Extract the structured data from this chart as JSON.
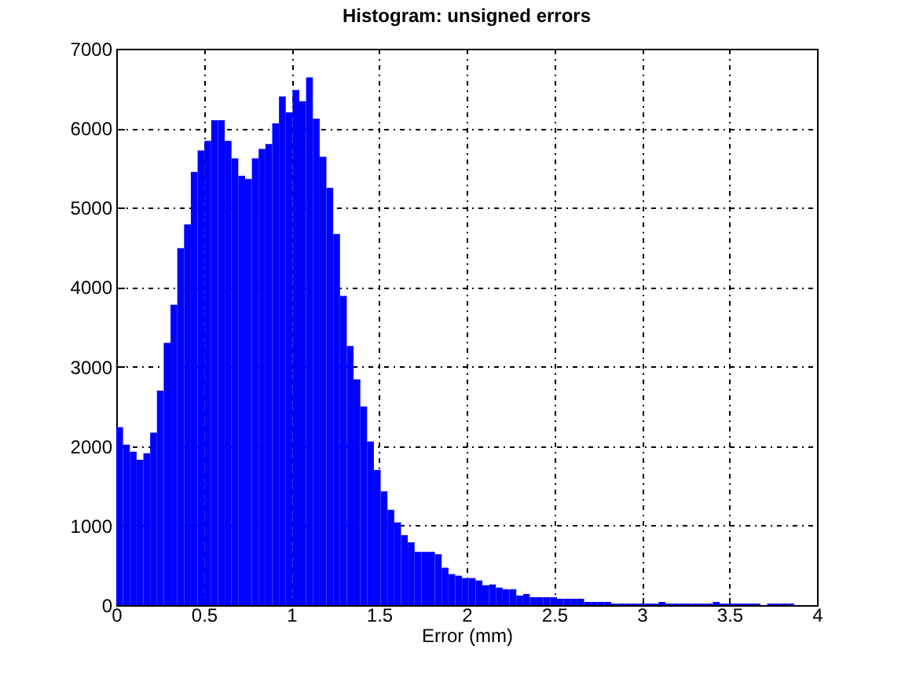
{
  "chart_data": {
    "type": "histogram",
    "title": "Histogram: unsigned errors",
    "xlabel": "Error (mm)",
    "bins": [
      0,
      0.0387,
      0.0774,
      0.1161,
      0.1548,
      0.1935,
      0.2322,
      0.2709,
      0.3096,
      0.3483,
      0.387,
      0.4257,
      0.4644,
      0.5031,
      0.5418,
      0.5805,
      0.6192,
      0.6579,
      0.6966,
      0.7353,
      0.774,
      0.8127,
      0.8514,
      0.8901,
      0.9288,
      0.9675,
      1.0062,
      1.0449,
      1.0836,
      1.1223,
      1.161,
      1.1997,
      1.2384,
      1.2771,
      1.3158,
      1.3545,
      1.3932,
      1.4319,
      1.4706,
      1.5093,
      1.548,
      1.5867,
      1.6254,
      1.6641,
      1.7028,
      1.7415,
      1.7802,
      1.8189,
      1.8576,
      1.8963,
      1.935,
      1.9737,
      2.0124,
      2.0511,
      2.0898,
      2.1285,
      2.1672,
      2.2059,
      2.2446,
      2.2833,
      2.322,
      2.3607,
      2.3994,
      2.4381,
      2.4768,
      2.5155,
      2.5542,
      2.5929,
      2.6316,
      2.6703,
      2.709,
      2.7477,
      2.7864,
      2.8251,
      2.8638,
      2.9025,
      2.9412,
      2.9799,
      3.0186,
      3.0573,
      3.096,
      3.1347,
      3.1734,
      3.2121,
      3.2508,
      3.2895,
      3.3282,
      3.3669,
      3.4056,
      3.4443,
      3.483,
      3.5217,
      3.5604,
      3.5991,
      3.6378,
      3.6765,
      3.7152,
      3.7539,
      3.7926,
      3.8313,
      3.87
    ],
    "values": [
      2240,
      2020,
      1930,
      1830,
      1910,
      2170,
      2700,
      3300,
      3780,
      4490,
      4790,
      5450,
      5720,
      5840,
      6100,
      6100,
      5840,
      5620,
      5400,
      5360,
      5620,
      5740,
      5800,
      6060,
      6400,
      6200,
      6480,
      6340,
      6640,
      6120,
      5640,
      5250,
      4670,
      3890,
      3260,
      2840,
      2500,
      2060,
      1700,
      1430,
      1200,
      1040,
      880,
      790,
      670,
      670,
      670,
      640,
      470,
      390,
      370,
      340,
      340,
      310,
      250,
      260,
      220,
      200,
      200,
      120,
      140,
      100,
      100,
      100,
      100,
      80,
      80,
      80,
      80,
      40,
      40,
      40,
      40,
      20,
      20,
      20,
      20,
      20,
      20,
      20,
      40,
      20,
      20,
      20,
      20,
      20,
      20,
      20,
      40,
      20,
      20,
      20,
      20,
      20,
      20,
      0,
      20,
      20,
      20,
      20
    ],
    "color": "#0000ff",
    "xlim": [
      0,
      4
    ],
    "xticks": [
      0,
      0.5,
      1,
      1.5,
      2,
      2.5,
      3,
      3.5,
      4
    ],
    "ylim": [
      0,
      7000
    ],
    "yticks": [
      0,
      1000,
      2000,
      3000,
      4000,
      5000,
      6000,
      7000
    ],
    "grid": true
  }
}
